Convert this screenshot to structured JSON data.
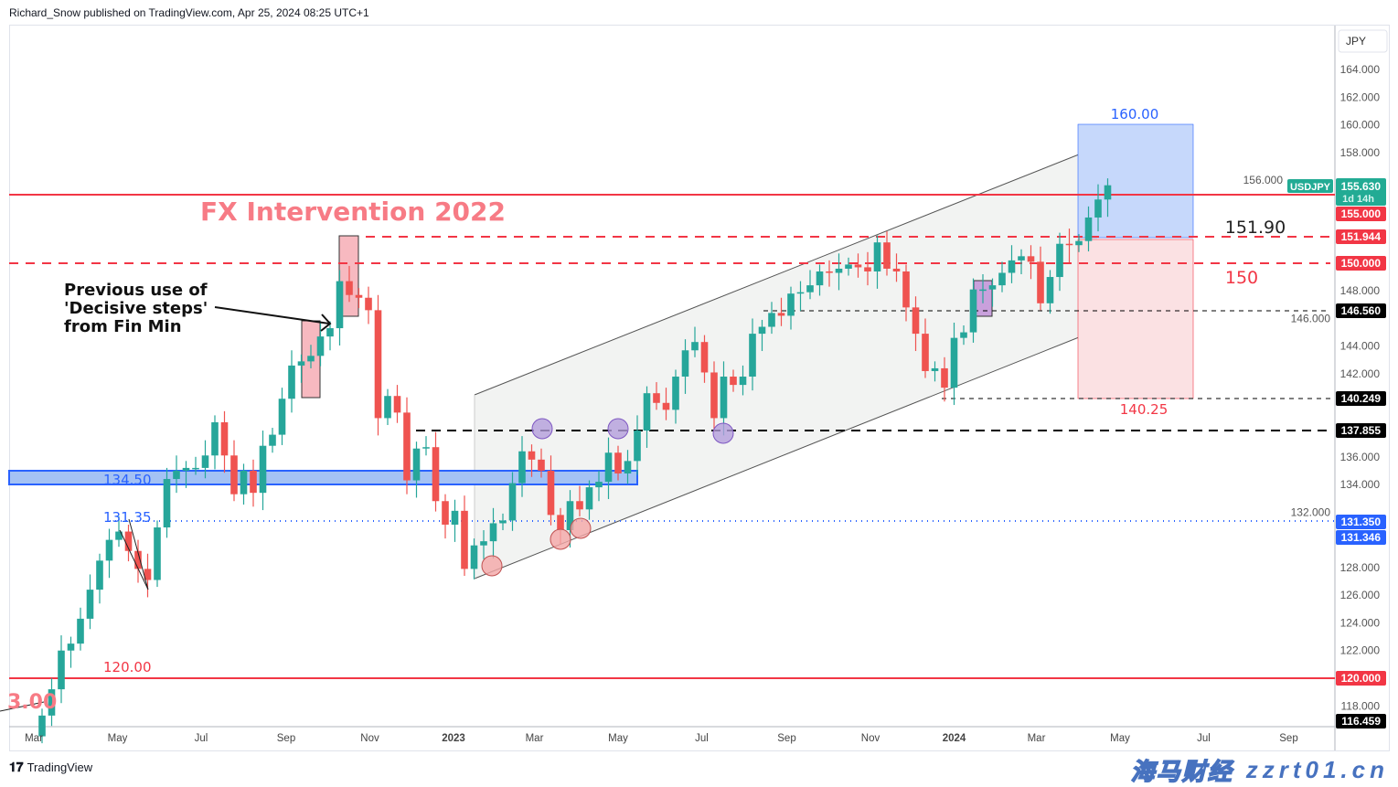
{
  "header": {
    "text": "Richard_Snow published on TradingView.com, Apr 25, 2024 08:25 UTC+1"
  },
  "footer": {
    "brand": "TradingView"
  },
  "watermark": {
    "line1": "海马财经",
    "line2": "zzrt01.cn"
  },
  "chart_data": {
    "type": "candlestick",
    "symbol": "USDJPY",
    "timeframe": "weekly",
    "currency": "JPY",
    "countdown": "1d 14h",
    "last_price": "155.630",
    "ylim": [
      115.5,
      166
    ],
    "y_ticks": [
      "164.000",
      "162.000",
      "160.000",
      "158.000",
      "156.000",
      "148.000",
      "146.000",
      "144.000",
      "142.000",
      "136.000",
      "134.000",
      "132.000",
      "128.000",
      "126.000",
      "124.000",
      "122.000",
      "118.000"
    ],
    "x_ticks": [
      {
        "label": "Mar",
        "date": "2022-03-01"
      },
      {
        "label": "May",
        "date": "2022-05-01"
      },
      {
        "label": "Jul",
        "date": "2022-07-01"
      },
      {
        "label": "Sep",
        "date": "2022-09-01"
      },
      {
        "label": "Nov",
        "date": "2022-11-01"
      },
      {
        "label": "2023",
        "date": "2023-01-01",
        "bold": true
      },
      {
        "label": "Mar",
        "date": "2023-03-01"
      },
      {
        "label": "May",
        "date": "2023-05-01"
      },
      {
        "label": "Jul",
        "date": "2023-07-01"
      },
      {
        "label": "Sep",
        "date": "2023-09-01"
      },
      {
        "label": "Nov",
        "date": "2023-11-01"
      },
      {
        "label": "2024",
        "date": "2024-01-01",
        "bold": true
      },
      {
        "label": "Mar",
        "date": "2024-03-01"
      },
      {
        "label": "May",
        "date": "2024-05-01"
      },
      {
        "label": "Jul",
        "date": "2024-07-01"
      },
      {
        "label": "Sep",
        "date": "2024-09-01"
      }
    ],
    "first_week": "2022-03-07",
    "weekly_close": [
      117.3,
      119.2,
      122.0,
      122.5,
      124.3,
      126.4,
      128.5,
      130.0,
      130.6,
      129.2,
      127.9,
      127.1,
      130.9,
      134.4,
      135.0,
      135.2,
      135.2,
      136.1,
      138.5,
      136.1,
      133.3,
      135.0,
      133.4,
      136.8,
      137.6,
      140.2,
      142.6,
      142.9,
      143.3,
      144.7,
      145.3,
      148.7,
      147.7,
      147.5,
      146.6,
      138.8,
      140.4,
      139.2,
      134.3,
      136.6,
      136.7,
      132.8,
      131.1,
      132.1,
      127.9,
      129.6,
      129.9,
      131.2,
      131.4,
      134.1,
      136.4,
      135.8,
      135.0,
      131.8,
      130.7,
      132.8,
      132.2,
      133.8,
      134.2,
      136.3,
      134.8,
      135.7,
      137.9,
      140.6,
      139.9,
      139.4,
      141.8,
      143.7,
      144.3,
      142.1,
      138.8,
      141.8,
      141.2,
      141.8,
      144.9,
      145.4,
      146.4,
      146.2,
      147.8,
      147.9,
      148.4,
      149.4,
      149.3,
      149.6,
      149.9,
      149.7,
      149.4,
      151.5,
      149.6,
      149.4,
      146.8,
      144.9,
      142.2,
      142.4,
      141.0,
      144.6,
      145.0,
      148.1,
      148.1,
      148.4,
      149.3,
      150.2,
      150.5,
      150.1,
      147.1,
      149.0,
      151.4,
      151.3,
      151.6,
      153.3,
      154.6,
      155.63
    ],
    "first_open": 115.8,
    "price_labels": [
      {
        "value": "155.630",
        "color": "#22ab94"
      },
      {
        "value": "155.000",
        "color": "#f23645"
      },
      {
        "value": "151.944",
        "color": "#f23645"
      },
      {
        "value": "150.000",
        "color": "#f23645"
      },
      {
        "value": "146.560",
        "color": "#000000"
      },
      {
        "value": "140.249",
        "color": "#000000"
      },
      {
        "value": "137.855",
        "color": "#000000"
      },
      {
        "value": "131.350",
        "color": "#2962ff"
      },
      {
        "value": "131.346",
        "color": "#2962ff"
      },
      {
        "value": "120.000",
        "color": "#f23645"
      },
      {
        "value": "116.459",
        "color": "#000000"
      }
    ],
    "annotations": {
      "fx_intervention": "FX Intervention 2022",
      "decisive_1": "Previous use of",
      "decisive_2": "'Decisive steps'",
      "decisive_3": "from Fin Min",
      "target_160": "160.00",
      "level_151_90": "151.90",
      "level_150": "150",
      "level_140_25": "140.25",
      "level_134_50": "134.50",
      "level_131_35": "131.35",
      "level_120": "120.00",
      "level_118_cut": "3.00"
    },
    "colors": {
      "up": "#26a69a",
      "down": "#ef5350",
      "resistance": "#f23645",
      "support_zone": "#2962ff"
    }
  }
}
